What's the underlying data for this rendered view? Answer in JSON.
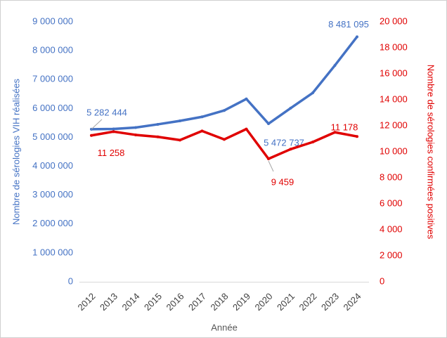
{
  "chart_data": {
    "type": "line",
    "categories": [
      "2012",
      "2013",
      "2014",
      "2015",
      "2016",
      "2017",
      "2018",
      "2019",
      "2020",
      "2021",
      "2022",
      "2023",
      "2024"
    ],
    "series": [
      {
        "name": "Nombre de sérologies VIH réalisées",
        "color": "#4472c4",
        "axis": "y",
        "values": [
          5282444,
          5290000,
          5340000,
          5450000,
          5570000,
          5710000,
          5930000,
          6330000,
          5472737,
          6010000,
          6540000,
          7490000,
          8481095
        ],
        "value_labels": [
          "5 282 444",
          null,
          null,
          null,
          null,
          null,
          null,
          null,
          "5 472 737",
          null,
          null,
          null,
          "8 481 095"
        ]
      },
      {
        "name": "Nombre de sérologies confirmées positives",
        "color": "#e00000",
        "axis": "y2",
        "values": [
          11258,
          11550,
          11300,
          11150,
          10900,
          11600,
          10950,
          11750,
          9459,
          10200,
          10750,
          11500,
          11178
        ],
        "value_labels": [
          "11 258",
          null,
          null,
          null,
          null,
          null,
          null,
          null,
          "9 459",
          null,
          null,
          null,
          "11 178"
        ]
      }
    ],
    "ylabel": "Nombre de sérologies VIH réalisées",
    "y2label": "Nombre de sérologies confirmées positives",
    "xlabel": "Année",
    "ylim": [
      0,
      9000000
    ],
    "yticks": [
      0,
      {
        "value": 1000000,
        "label": "1 000 000"
      },
      {
        "value": 2000000,
        "label": "2 000 000"
      },
      {
        "value": 3000000,
        "label": "3 000 000"
      },
      {
        "value": 4000000,
        "label": "4 000 000"
      },
      {
        "value": 5000000,
        "label": "5 000 000"
      },
      {
        "value": 6000000,
        "label": "6 000 000"
      },
      {
        "value": 7000000,
        "label": "7 000 000"
      },
      {
        "value": 8000000,
        "label": "8 000 000"
      },
      {
        "value": 9000000,
        "label": "9 000 000"
      }
    ],
    "y2lim": [
      0,
      20000
    ],
    "y2ticks": [
      0,
      {
        "value": 2000,
        "label": "2 000"
      },
      {
        "value": 4000,
        "label": "4 000"
      },
      {
        "value": 6000,
        "label": "6 000"
      },
      {
        "value": 8000,
        "label": "8 000"
      },
      {
        "value": 10000,
        "label": "10 000"
      },
      {
        "value": 12000,
        "label": "12 000"
      },
      {
        "value": 14000,
        "label": "14 000"
      },
      {
        "value": 16000,
        "label": "16 000"
      },
      {
        "value": 18000,
        "label": "18 000"
      },
      {
        "value": 20000,
        "label": "20 000"
      }
    ]
  }
}
